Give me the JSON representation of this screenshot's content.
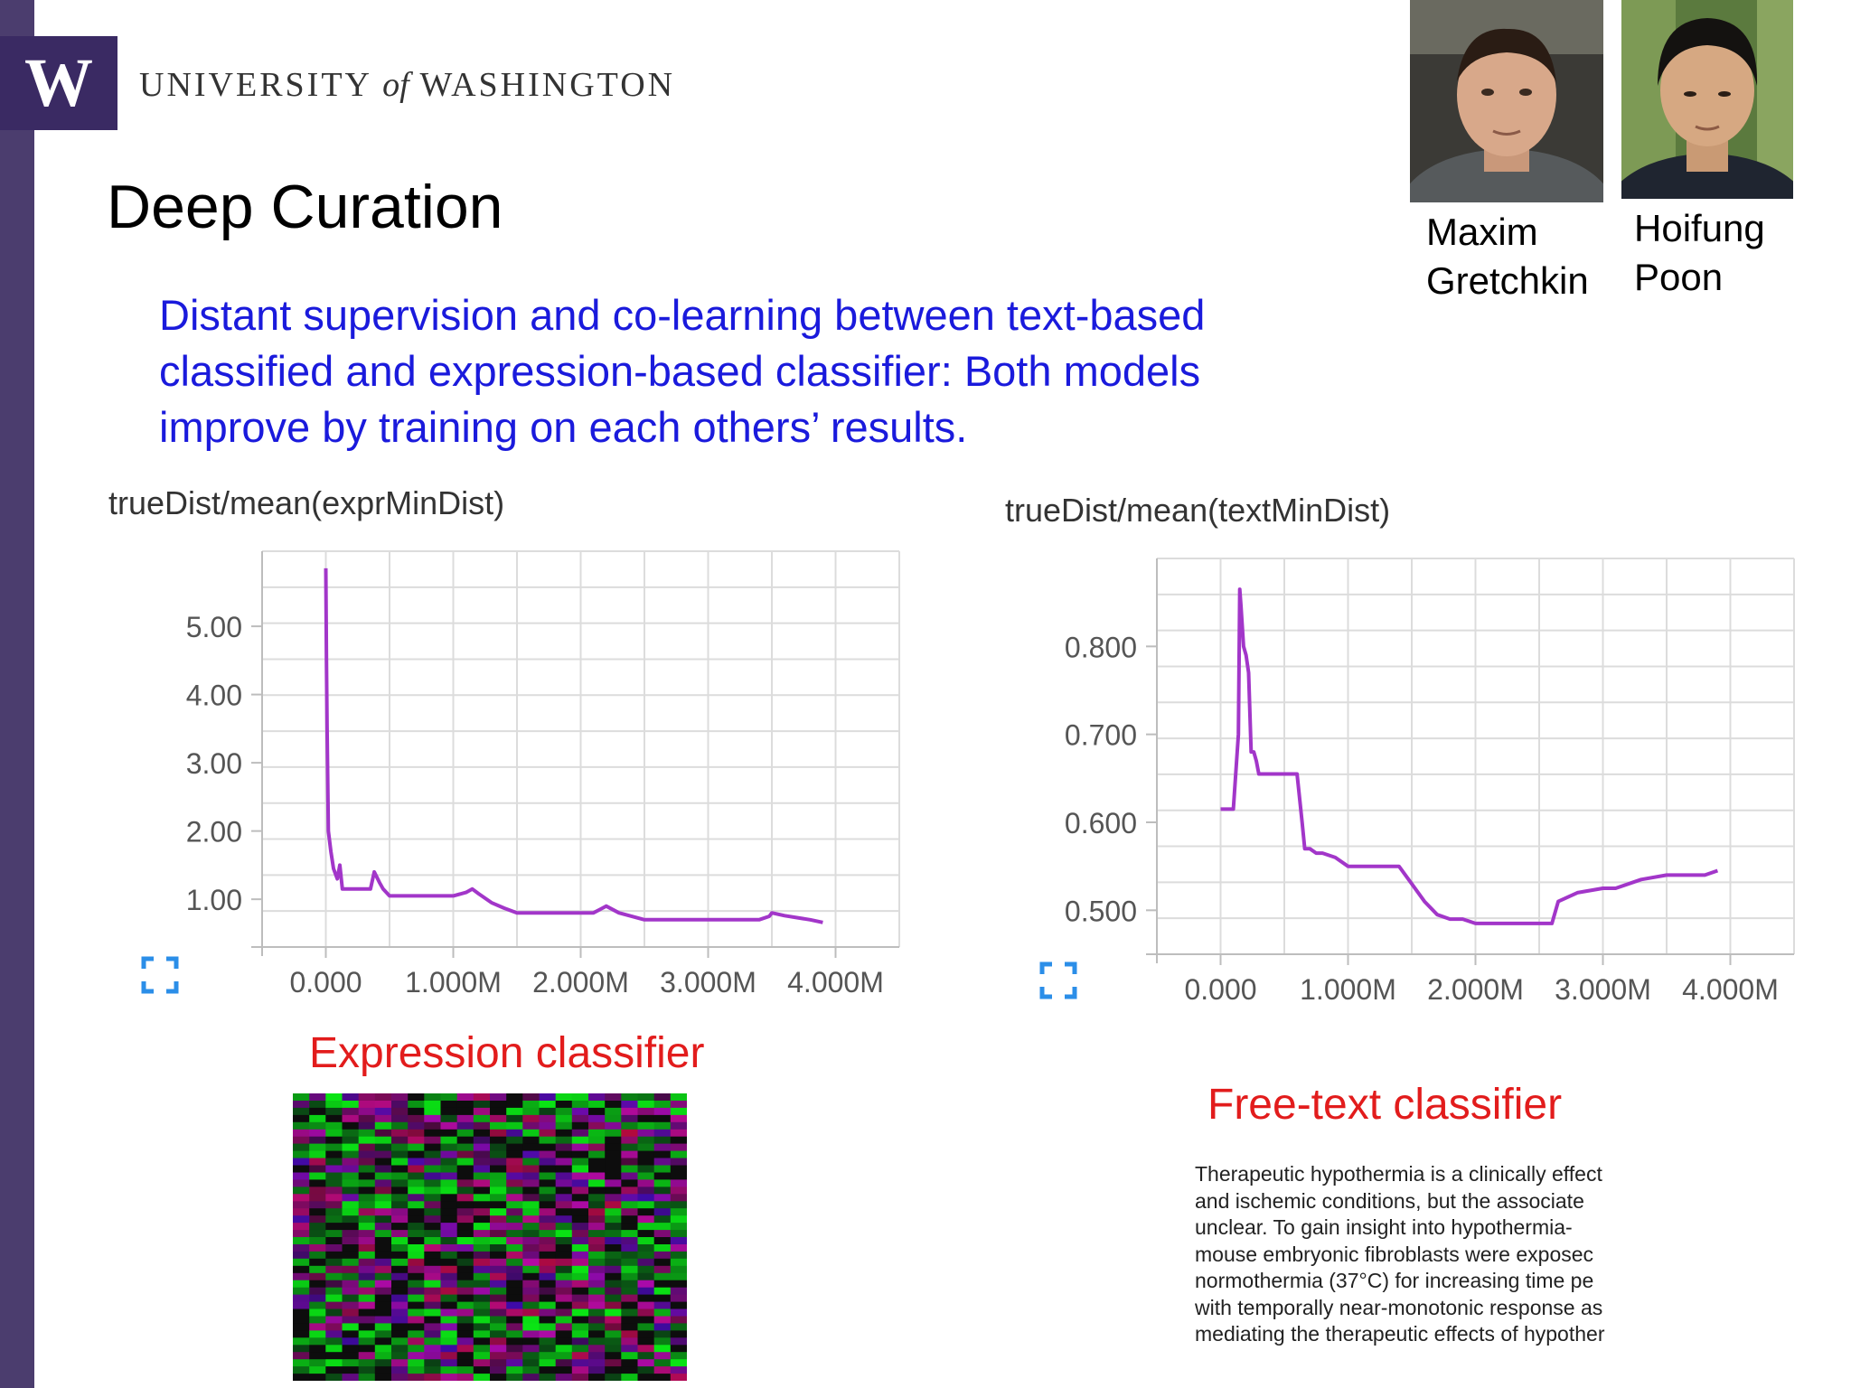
{
  "header": {
    "logo_letter": "W",
    "university_pre": "UNIVERSITY ",
    "university_of": "of",
    "university_post": " WASHINGTON"
  },
  "slide": {
    "title": "Deep Curation",
    "subtitle": "Distant supervision and co-learning between text-based classified and expression-based classifier: Both models improve by training on each others’ results."
  },
  "people": [
    {
      "first": "Maxim",
      "last": "Gretchkin"
    },
    {
      "first": "Hoifung",
      "last": "Poon"
    }
  ],
  "icons": {
    "expand": "fullscreen-expand-icon"
  },
  "colors": {
    "line": "#a236c9",
    "caption": "#e21c1c",
    "subtitle": "#1a1adc",
    "brand": "#3a2a63"
  },
  "captions": {
    "expression": "Expression classifier",
    "free_text": "Free-text classifier"
  },
  "free_text_lines": [
    "Therapeutic hypothermia is a clinically effect",
    "and ischemic conditions, but the associate",
    "unclear. To gain insight into hypothermia-",
    "mouse embryonic fibroblasts were exposec",
    "normothermia (37°C) for increasing time pe",
    "with temporally near-monotonic response as",
    "mediating the therapeutic effects of hypother"
  ],
  "chart_data": [
    {
      "type": "line",
      "title": "trueDist/mean(exprMinDist)",
      "xlabel": "",
      "ylabel": "",
      "xlim": [
        -0.5,
        4.5
      ],
      "ylim": [
        0.3,
        6.1
      ],
      "xticks": [
        0,
        1,
        2,
        3,
        4
      ],
      "xtick_labels": [
        "0.000",
        "1.000M",
        "2.000M",
        "3.000M",
        "4.000M"
      ],
      "yticks": [
        1,
        2,
        3,
        4,
        5
      ],
      "ytick_labels": [
        "1.00",
        "2.00",
        "3.00",
        "4.00",
        "5.00"
      ],
      "grid": true,
      "series": [
        {
          "x": [
            0,
            0.005,
            0.01,
            0.02,
            0.04,
            0.06,
            0.09,
            0.11,
            0.13,
            0.18,
            0.25,
            0.3,
            0.35,
            0.38,
            0.42,
            0.45,
            0.5,
            0.6,
            0.8,
            1.0,
            1.1,
            1.15,
            1.2,
            1.3,
            1.4,
            1.5,
            1.6,
            1.8,
            2.0,
            2.1,
            2.15,
            2.2,
            2.3,
            2.5,
            2.7,
            3.0,
            3.2,
            3.4,
            3.48,
            3.5,
            3.6,
            3.8,
            3.9
          ],
          "values": [
            5.85,
            4.5,
            3.5,
            2.0,
            1.7,
            1.45,
            1.3,
            1.5,
            1.15,
            1.15,
            1.15,
            1.15,
            1.15,
            1.4,
            1.25,
            1.15,
            1.05,
            1.05,
            1.05,
            1.05,
            1.1,
            1.15,
            1.08,
            0.95,
            0.87,
            0.8,
            0.8,
            0.8,
            0.8,
            0.8,
            0.85,
            0.9,
            0.8,
            0.7,
            0.7,
            0.7,
            0.7,
            0.7,
            0.75,
            0.8,
            0.76,
            0.7,
            0.66
          ]
        }
      ]
    },
    {
      "type": "line",
      "title": "trueDist/mean(textMinDist)",
      "xlabel": "",
      "ylabel": "",
      "xlim": [
        -0.5,
        4.5
      ],
      "ylim": [
        0.45,
        0.9
      ],
      "xticks": [
        0,
        1,
        2,
        3,
        4
      ],
      "xtick_labels": [
        "0.000",
        "1.000M",
        "2.000M",
        "3.000M",
        "4.000M"
      ],
      "yticks": [
        0.5,
        0.6,
        0.7,
        0.8
      ],
      "ytick_labels": [
        "0.500",
        "0.600",
        "0.700",
        "0.800"
      ],
      "grid": true,
      "series": [
        {
          "x": [
            0,
            0.1,
            0.14,
            0.15,
            0.16,
            0.18,
            0.2,
            0.22,
            0.24,
            0.26,
            0.28,
            0.3,
            0.35,
            0.4,
            0.5,
            0.6,
            0.64,
            0.66,
            0.7,
            0.75,
            0.8,
            0.9,
            1.0,
            1.1,
            1.2,
            1.4,
            1.5,
            1.6,
            1.7,
            1.8,
            1.9,
            2.0,
            2.2,
            2.5,
            2.6,
            2.65,
            2.8,
            3.0,
            3.1,
            3.3,
            3.5,
            3.8,
            3.9
          ],
          "values": [
            0.615,
            0.615,
            0.7,
            0.865,
            0.845,
            0.8,
            0.79,
            0.77,
            0.68,
            0.68,
            0.67,
            0.655,
            0.655,
            0.655,
            0.655,
            0.655,
            0.6,
            0.57,
            0.57,
            0.565,
            0.565,
            0.56,
            0.55,
            0.55,
            0.55,
            0.55,
            0.53,
            0.51,
            0.495,
            0.49,
            0.49,
            0.485,
            0.485,
            0.485,
            0.485,
            0.51,
            0.52,
            0.525,
            0.525,
            0.535,
            0.54,
            0.54,
            0.545
          ]
        }
      ]
    }
  ]
}
